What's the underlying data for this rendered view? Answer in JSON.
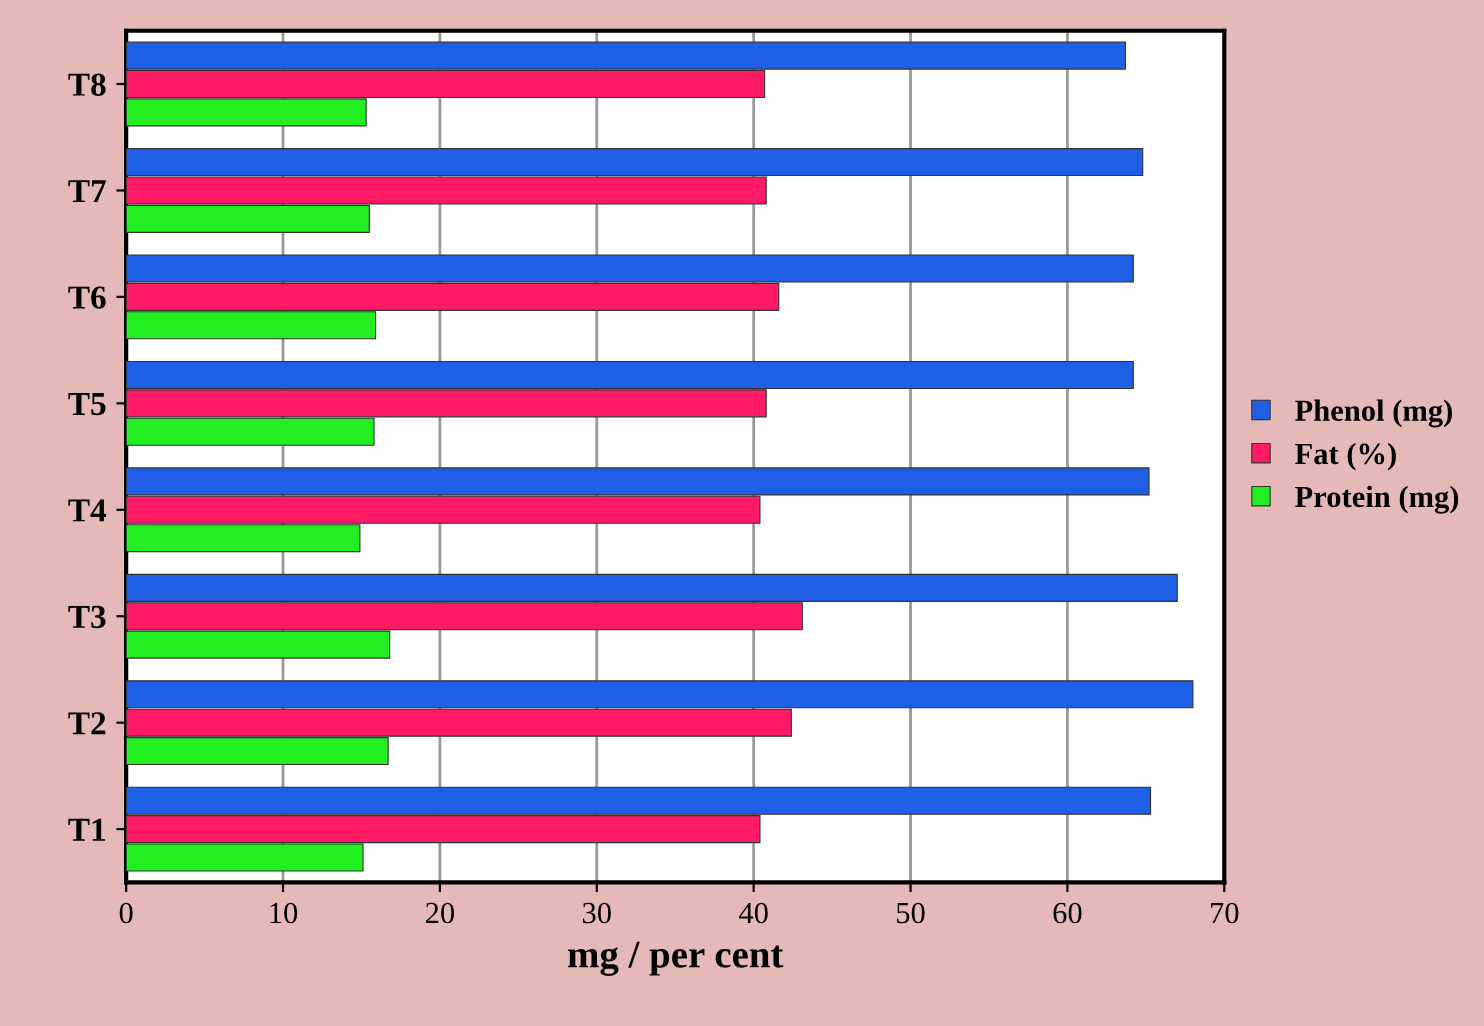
{
  "chart_data": {
    "type": "bar",
    "orientation": "horizontal",
    "xlabel": "mg / per cent",
    "categories": [
      "T8",
      "T7",
      "T6",
      "T5",
      "T4",
      "T3",
      "T2",
      "T1"
    ],
    "series": [
      {
        "name": "Phenol (mg)",
        "color": "#1f5fe6",
        "values": [
          63.7,
          64.8,
          64.2,
          64.2,
          65.2,
          67.0,
          68.0,
          65.3
        ]
      },
      {
        "name": "Fat (%)",
        "color": "#ff1a66",
        "values": [
          40.7,
          40.8,
          41.6,
          40.8,
          40.4,
          43.1,
          42.4,
          40.4
        ]
      },
      {
        "name": "Protein (mg)",
        "color": "#22ee22",
        "values": [
          15.3,
          15.5,
          15.9,
          15.8,
          14.9,
          16.8,
          16.7,
          15.1
        ]
      }
    ],
    "xlim": [
      0,
      70
    ],
    "xticks": [
      0,
      10,
      20,
      30,
      40,
      50,
      60,
      70
    ],
    "grid": "x",
    "legend": "right"
  }
}
